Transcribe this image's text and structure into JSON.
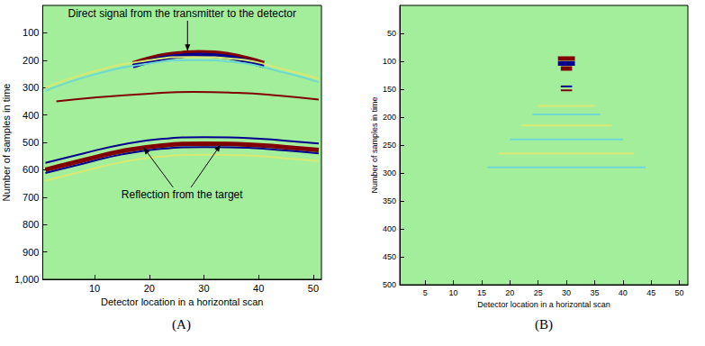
{
  "chart_data": [
    {
      "type": "line",
      "title": "(A)",
      "x_label": "Detector location in a horizontal scan",
      "y_label": "Number of samples in time",
      "xlim": [
        0.5,
        51.5
      ],
      "ylim": [
        0,
        1000
      ],
      "xticks": [
        10,
        20,
        30,
        40,
        50
      ],
      "yticks": [
        100,
        200,
        300,
        400,
        500,
        600,
        700,
        800,
        900,
        1000
      ],
      "grid": false,
      "annotations": [
        "Direct signal from the transmitter to the detector",
        "Reflection from the target"
      ],
      "series": [
        {
          "color": "#800000",
          "line_style": "thick",
          "x": [
            17,
            20,
            23,
            26,
            29,
            32,
            35,
            38,
            41
          ],
          "values": [
            212,
            194,
            181,
            174,
            171,
            173,
            181,
            194,
            211
          ]
        },
        {
          "color": "#00008f",
          "line_style": "thick",
          "x": [
            17,
            20,
            23,
            26,
            29,
            32,
            35,
            38,
            41
          ],
          "values": [
            222,
            204,
            191,
            184,
            181,
            183,
            191,
            204,
            221
          ]
        },
        {
          "color": "#d9e870",
          "line_style": "thin",
          "x": [
            1,
            10,
            20,
            28,
            36,
            45,
            51
          ],
          "values": [
            300,
            240,
            200,
            188,
            196,
            235,
            268
          ]
        },
        {
          "color": "#6fd8d0",
          "line_style": "thin",
          "x": [
            1,
            10,
            20,
            28,
            36,
            45,
            51
          ],
          "values": [
            312,
            252,
            212,
            200,
            208,
            247,
            280
          ]
        },
        {
          "color": "#800000",
          "line_style": "thin",
          "x": [
            3,
            10,
            20,
            28,
            36,
            44,
            51
          ],
          "values": [
            350,
            336,
            322,
            316,
            319,
            330,
            344
          ]
        },
        {
          "color": "#00008f",
          "line_style": "thin",
          "x": [
            1,
            8,
            15,
            22,
            30,
            38,
            45,
            51
          ],
          "values": [
            575,
            540,
            508,
            488,
            481,
            484,
            494,
            504
          ]
        },
        {
          "color": "#800000",
          "line_style": "thick",
          "x": [
            1,
            8,
            15,
            22,
            30,
            38,
            45,
            51
          ],
          "values": [
            600,
            565,
            532,
            512,
            505,
            508,
            518,
            528
          ]
        },
        {
          "color": "#00008f",
          "line_style": "thin",
          "x": [
            1,
            8,
            15,
            22,
            30,
            38,
            45,
            51
          ],
          "values": [
            612,
            577,
            544,
            524,
            517,
            520,
            530,
            540
          ]
        },
        {
          "color": "#d9e870",
          "line_style": "thin",
          "x": [
            1,
            8,
            15,
            22,
            30,
            38,
            45,
            51
          ],
          "values": [
            640,
            605,
            572,
            552,
            545,
            548,
            558,
            568
          ]
        }
      ]
    },
    {
      "type": "line",
      "title": "(B)",
      "x_label": "Detector location in a horizontal scan",
      "y_label": "Number of samples in time",
      "xlim": [
        0.5,
        51.5
      ],
      "ylim": [
        0,
        500
      ],
      "xticks": [
        5,
        10,
        15,
        20,
        25,
        30,
        35,
        40,
        45,
        50
      ],
      "yticks": [
        50,
        100,
        150,
        200,
        250,
        300,
        350,
        400,
        450,
        500
      ],
      "grid": false,
      "series": [
        {
          "color": "#800000",
          "line_style": "thick",
          "x": [
            28.5,
            31.5
          ],
          "values": [
            95,
            95
          ]
        },
        {
          "color": "#00008f",
          "line_style": "thick",
          "x": [
            28.5,
            31.5
          ],
          "values": [
            104,
            104
          ]
        },
        {
          "color": "#800000",
          "line_style": "thick",
          "x": [
            29,
            31
          ],
          "values": [
            113,
            113
          ]
        },
        {
          "color": "#00008f",
          "line_style": "thin",
          "x": [
            29,
            31
          ],
          "values": [
            145,
            145
          ]
        },
        {
          "color": "#800000",
          "line_style": "thin",
          "x": [
            29,
            31
          ],
          "values": [
            152,
            152
          ]
        },
        {
          "color": "#d9e870",
          "line_style": "thin",
          "x": [
            25,
            35
          ],
          "values": [
            180,
            180
          ]
        },
        {
          "color": "#6fd8d0",
          "line_style": "thin",
          "x": [
            24,
            36
          ],
          "values": [
            195,
            195
          ]
        },
        {
          "color": "#d9e870",
          "line_style": "thin",
          "x": [
            22,
            38
          ],
          "values": [
            215,
            215
          ]
        },
        {
          "color": "#6fd8d0",
          "line_style": "thin",
          "x": [
            20,
            40
          ],
          "values": [
            240,
            240
          ]
        },
        {
          "color": "#d9e870",
          "line_style": "thin",
          "x": [
            18,
            42
          ],
          "values": [
            265,
            265
          ]
        },
        {
          "color": "#6fd8d0",
          "line_style": "thin",
          "x": [
            16,
            44
          ],
          "values": [
            290,
            290
          ]
        }
      ]
    }
  ]
}
